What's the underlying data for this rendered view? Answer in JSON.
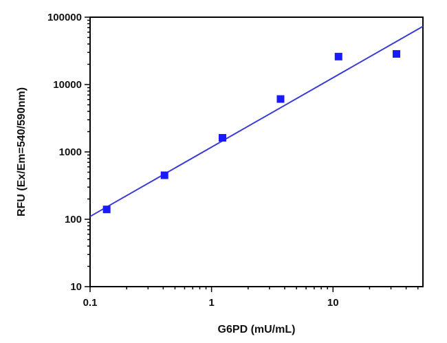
{
  "chart_data": {
    "type": "scatter",
    "xlabel": "G6PD (mU/mL)",
    "ylabel": "RFU (Ex/Em=540/590nm)",
    "xscale": "log",
    "yscale": "log",
    "xlim": [
      0.1,
      55
    ],
    "ylim": [
      10,
      100000
    ],
    "x_ticks": [
      0.1,
      1,
      10
    ],
    "x_tick_labels": [
      "0.1",
      "1",
      "10"
    ],
    "y_ticks": [
      10,
      100,
      1000,
      10000,
      100000
    ],
    "y_tick_labels": [
      "10",
      "100",
      "1000",
      "10000",
      "100000"
    ],
    "grid": false,
    "series": [
      {
        "marker": "square",
        "color": "#1a1aff",
        "x": [
          0.137,
          0.41,
          1.23,
          3.7,
          11.1,
          33.3
        ],
        "y": [
          140,
          450,
          1620,
          6100,
          26000,
          28500
        ]
      }
    ],
    "fit_line": {
      "color": "#3a3ad6",
      "x": [
        0.1,
        55
      ],
      "y": [
        110,
        73000
      ]
    }
  }
}
